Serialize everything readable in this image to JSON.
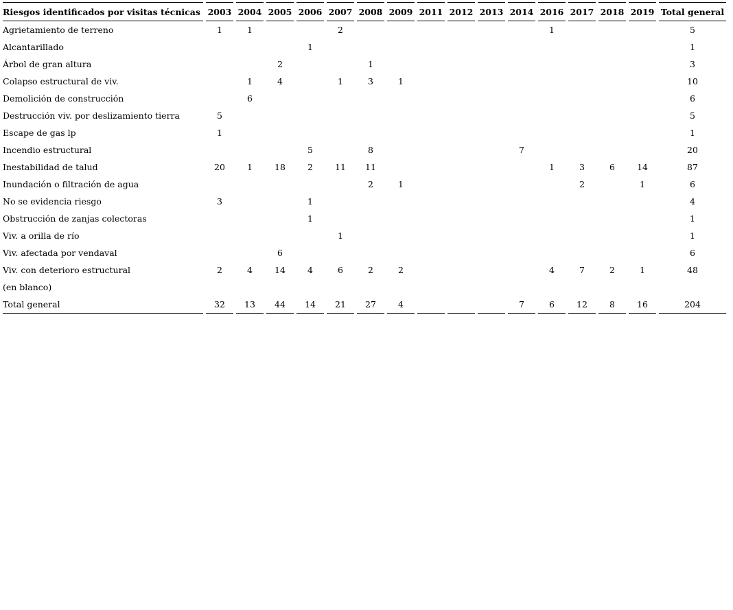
{
  "colors": {
    "text": "#000000",
    "border": "#000000",
    "background": "#ffffff"
  },
  "chart_data": {
    "type": "table",
    "label_header": "Riesgos identificados por visitas técnicas",
    "columns": [
      "2003",
      "2004",
      "2005",
      "2006",
      "2007",
      "2008",
      "2009",
      "2011",
      "2012",
      "2013",
      "2014",
      "2016",
      "2017",
      "2018",
      "2019",
      "Total general"
    ],
    "rows": [
      {
        "label": "Agrietamiento de terreno",
        "values": [
          "1",
          "1",
          "",
          "",
          "2",
          "",
          "",
          "",
          "",
          "",
          "",
          "1",
          "",
          "",
          "",
          "5"
        ]
      },
      {
        "label": "Alcantarillado",
        "values": [
          "",
          "",
          "",
          "1",
          "",
          "",
          "",
          "",
          "",
          "",
          "",
          "",
          "",
          "",
          "",
          "1"
        ]
      },
      {
        "label": "Árbol de gran altura",
        "values": [
          "",
          "",
          "2",
          "",
          "",
          "1",
          "",
          "",
          "",
          "",
          "",
          "",
          "",
          "",
          "",
          "3"
        ]
      },
      {
        "label": "Colapso estructural de viv.",
        "values": [
          "",
          "1",
          "4",
          "",
          "1",
          "3",
          "1",
          "",
          "",
          "",
          "",
          "",
          "",
          "",
          "",
          "10"
        ]
      },
      {
        "label": "Demolición de construcción",
        "values": [
          "",
          "6",
          "",
          "",
          "",
          "",
          "",
          "",
          "",
          "",
          "",
          "",
          "",
          "",
          "",
          "6"
        ]
      },
      {
        "label": "Destrucción viv. por deslizamiento tierra",
        "values": [
          "5",
          "",
          "",
          "",
          "",
          "",
          "",
          "",
          "",
          "",
          "",
          "",
          "",
          "",
          "",
          "5"
        ]
      },
      {
        "label": "Escape de gas lp",
        "values": [
          "1",
          "",
          "",
          "",
          "",
          "",
          "",
          "",
          "",
          "",
          "",
          "",
          "",
          "",
          "",
          "1"
        ]
      },
      {
        "label": "Incendio estructural",
        "values": [
          "",
          "",
          "",
          "5",
          "",
          "8",
          "",
          "",
          "",
          "",
          "7",
          "",
          "",
          "",
          "",
          "20"
        ]
      },
      {
        "label": "Inestabilidad de talud",
        "values": [
          "20",
          "1",
          "18",
          "2",
          "11",
          "11",
          "",
          "",
          "",
          "",
          "",
          "1",
          "3",
          "6",
          "14",
          "87"
        ]
      },
      {
        "label": "Inundación o filtración de agua",
        "values": [
          "",
          "",
          "",
          "",
          "",
          "2",
          "1",
          "",
          "",
          "",
          "",
          "",
          "2",
          "",
          "1",
          "6"
        ]
      },
      {
        "label": "No se evidencia riesgo",
        "values": [
          "3",
          "",
          "",
          "1",
          "",
          "",
          "",
          "",
          "",
          "",
          "",
          "",
          "",
          "",
          "",
          "4"
        ]
      },
      {
        "label": "Obstrucción de zanjas colectoras",
        "values": [
          "",
          "",
          "",
          "1",
          "",
          "",
          "",
          "",
          "",
          "",
          "",
          "",
          "",
          "",
          "",
          "1"
        ]
      },
      {
        "label": "Viv. a orilla de río",
        "values": [
          "",
          "",
          "",
          "",
          "1",
          "",
          "",
          "",
          "",
          "",
          "",
          "",
          "",
          "",
          "",
          "1"
        ]
      },
      {
        "label": "Viv. afectada por vendaval",
        "values": [
          "",
          "",
          "6",
          "",
          "",
          "",
          "",
          "",
          "",
          "",
          "",
          "",
          "",
          "",
          "",
          "6"
        ]
      },
      {
        "label": "Viv. con deterioro estructural",
        "values": [
          "2",
          "4",
          "14",
          "4",
          "6",
          "2",
          "2",
          "",
          "",
          "",
          "",
          "4",
          "7",
          "2",
          "1",
          "48"
        ]
      },
      {
        "label": "(en blanco)",
        "values": [
          "",
          "",
          "",
          "",
          "",
          "",
          "",
          "",
          "",
          "",
          "",
          "",
          "",
          "",
          "",
          ""
        ]
      }
    ],
    "total_row": {
      "label": "Total general",
      "values": [
        "32",
        "13",
        "44",
        "14",
        "21",
        "27",
        "4",
        "",
        "",
        "",
        "7",
        "6",
        "12",
        "8",
        "16",
        "204"
      ]
    }
  }
}
